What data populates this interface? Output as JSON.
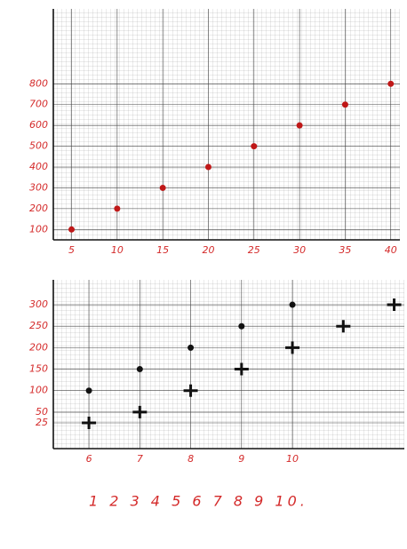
{
  "chart_data": [
    {
      "type": "scatter",
      "series": [
        {
          "color": "#c01818",
          "marker": "dot",
          "x": [
            5,
            10,
            15,
            20,
            25,
            30,
            35,
            40
          ],
          "values": [
            100,
            200,
            300,
            400,
            500,
            600,
            700,
            800
          ]
        }
      ],
      "xlim": [
        3,
        41
      ],
      "xticks": [
        5,
        10,
        15,
        20,
        25,
        30,
        35,
        40
      ],
      "ylim": [
        50,
        1160
      ],
      "yticks": [
        100,
        200,
        300,
        400,
        500,
        600,
        700,
        800
      ],
      "grid": true
    },
    {
      "type": "scatter",
      "series": [
        {
          "color": "#111111",
          "marker": "dot",
          "x": [
            6,
            7,
            8,
            9,
            10
          ],
          "values": [
            100,
            150,
            200,
            250,
            300
          ]
        },
        {
          "color": "#111111",
          "marker": "cross",
          "x": [
            6,
            7,
            8,
            9,
            10,
            11,
            12
          ],
          "values": [
            25,
            50,
            100,
            150,
            200,
            250,
            300
          ]
        }
      ],
      "xlim": [
        5.3,
        12.2
      ],
      "xticks": [
        6,
        7,
        8,
        9,
        10
      ],
      "ylim": [
        -35,
        358
      ],
      "yticks": [
        25,
        50,
        100,
        150,
        200,
        250,
        300
      ],
      "grid": true,
      "annotations": [
        "1 2 3 4 5 6 7 8 9 10."
      ]
    }
  ]
}
